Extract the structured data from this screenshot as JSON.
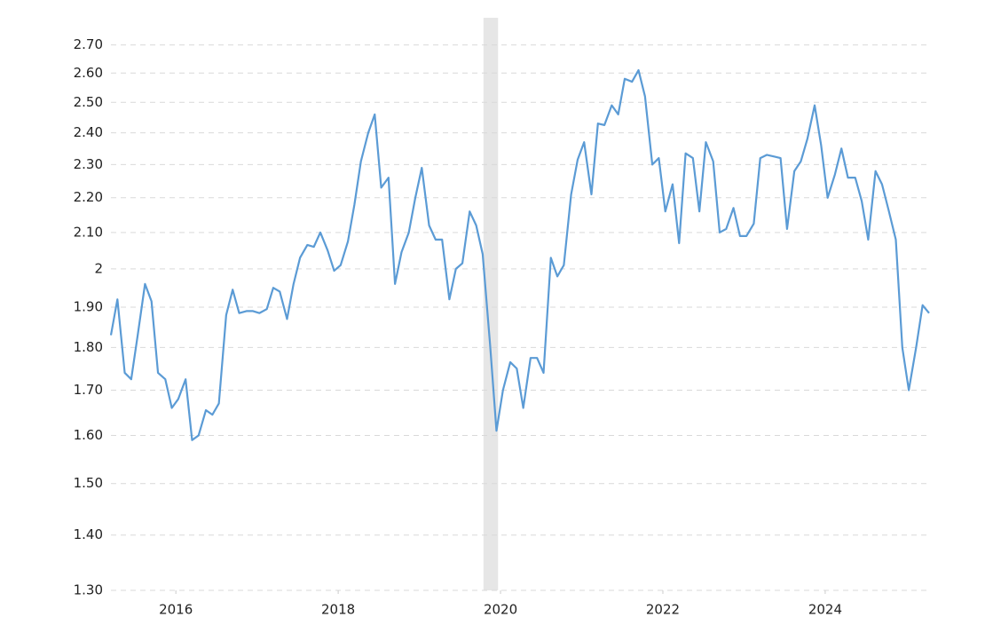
{
  "chart_data": {
    "type": "line",
    "log_scale_y": true,
    "grid": true,
    "shaded_regions": [
      [
        2019.79,
        2019.97
      ]
    ],
    "shade_color": "#e6e6e6",
    "xlim": [
      2015.2,
      2025.28
    ],
    "xticks": [
      2016,
      2018,
      2020,
      2022,
      2024
    ],
    "ylim": [
      1.3,
      2.8
    ],
    "yticks": [
      {
        "value": 1.3,
        "label": "1.30"
      },
      {
        "value": 1.4,
        "label": "1.40"
      },
      {
        "value": 1.5,
        "label": "1.50"
      },
      {
        "value": 1.6,
        "label": "1.60"
      },
      {
        "value": 1.7,
        "label": "1.70"
      },
      {
        "value": 1.8,
        "label": "1.80"
      },
      {
        "value": 1.9,
        "label": "1.90"
      },
      2,
      {
        "value": 2.1,
        "label": "2.10"
      },
      {
        "value": 2.2,
        "label": "2.20"
      },
      {
        "value": 2.3,
        "label": "2.30"
      },
      {
        "value": 2.4,
        "label": "2.40"
      },
      {
        "value": 2.5,
        "label": "2.50"
      },
      {
        "value": 2.6,
        "label": "2.60"
      },
      {
        "value": 2.7,
        "label": "2.70"
      }
    ],
    "x": [
      2015.2,
      2015.28,
      2015.37,
      2015.45,
      2015.53,
      2015.62,
      2015.7,
      2015.78,
      2015.87,
      2015.95,
      2016.03,
      2016.12,
      2016.2,
      2016.28,
      2016.37,
      2016.45,
      2016.53,
      2016.62,
      2016.7,
      2016.78,
      2016.87,
      2016.95,
      2017.03,
      2017.12,
      2017.2,
      2017.28,
      2017.37,
      2017.45,
      2017.53,
      2017.62,
      2017.7,
      2017.78,
      2017.87,
      2017.95,
      2018.03,
      2018.12,
      2018.2,
      2018.28,
      2018.37,
      2018.45,
      2018.53,
      2018.62,
      2018.7,
      2018.78,
      2018.87,
      2018.95,
      2019.03,
      2019.12,
      2019.2,
      2019.28,
      2019.37,
      2019.45,
      2019.53,
      2019.62,
      2019.7,
      2019.78,
      2019.87,
      2019.95,
      2020.03,
      2020.12,
      2020.2,
      2020.28,
      2020.37,
      2020.45,
      2020.53,
      2020.62,
      2020.7,
      2020.78,
      2020.87,
      2020.95,
      2021.03,
      2021.12,
      2021.2,
      2021.28,
      2021.37,
      2021.45,
      2021.53,
      2021.62,
      2021.7,
      2021.78,
      2021.87,
      2021.95,
      2022.03,
      2022.12,
      2022.2,
      2022.28,
      2022.37,
      2022.45,
      2022.53,
      2022.62,
      2022.7,
      2022.78,
      2022.87,
      2022.95,
      2023.03,
      2023.12,
      2023.2,
      2023.28,
      2023.37,
      2023.45,
      2023.53,
      2023.62,
      2023.7,
      2023.78,
      2023.87,
      2023.95,
      2024.03,
      2024.12,
      2024.2,
      2024.28,
      2024.37,
      2024.45,
      2024.53,
      2024.62,
      2024.7,
      2024.78,
      2024.87,
      2024.95,
      2025.03,
      2025.12,
      2025.2,
      2025.28
    ],
    "series": [
      {
        "color": "#5b9bd5",
        "values": [
          1.83,
          1.92,
          1.74,
          1.725,
          1.83,
          1.96,
          1.915,
          1.74,
          1.725,
          1.66,
          1.68,
          1.725,
          1.59,
          1.6,
          1.655,
          1.645,
          1.67,
          1.88,
          1.945,
          1.885,
          1.89,
          1.89,
          1.885,
          1.895,
          1.95,
          1.94,
          1.87,
          1.96,
          2.03,
          2.065,
          2.06,
          2.1,
          2.05,
          1.995,
          2.01,
          2.075,
          2.18,
          2.31,
          2.4,
          2.46,
          2.23,
          2.26,
          1.96,
          2.045,
          2.1,
          2.2,
          2.29,
          2.12,
          2.08,
          2.08,
          1.92,
          2.0,
          2.015,
          2.16,
          2.12,
          2.04,
          1.81,
          1.61,
          1.7,
          1.765,
          1.75,
          1.66,
          1.775,
          1.775,
          1.74,
          2.03,
          1.98,
          2.01,
          2.21,
          2.315,
          2.37,
          2.21,
          2.43,
          2.425,
          2.49,
          2.46,
          2.58,
          2.57,
          2.61,
          2.52,
          2.3,
          2.32,
          2.16,
          2.24,
          2.07,
          2.335,
          2.32,
          2.16,
          2.37,
          2.31,
          2.1,
          2.11,
          2.17,
          2.09,
          2.09,
          2.125,
          2.32,
          2.33,
          2.325,
          2.32,
          2.11,
          2.28,
          2.31,
          2.38,
          2.49,
          2.36,
          2.2,
          2.27,
          2.35,
          2.26,
          2.26,
          2.19,
          2.08,
          2.28,
          2.24,
          2.165,
          2.08,
          1.8,
          1.7,
          1.8,
          1.905,
          1.885
        ]
      }
    ]
  }
}
